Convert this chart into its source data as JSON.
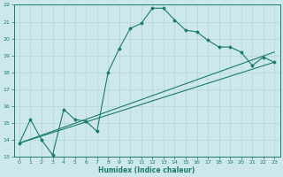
{
  "xlabel": "Humidex (Indice chaleur)",
  "ylabel": "",
  "xlim": [
    -0.5,
    23.5
  ],
  "ylim": [
    13,
    22
  ],
  "xticks": [
    0,
    1,
    2,
    3,
    4,
    5,
    6,
    7,
    8,
    9,
    10,
    11,
    12,
    13,
    14,
    15,
    16,
    17,
    18,
    19,
    20,
    21,
    22,
    23
  ],
  "yticks": [
    13,
    14,
    15,
    16,
    17,
    18,
    19,
    20,
    21,
    22
  ],
  "background_color": "#cde8ec",
  "line_color": "#1a7a6e",
  "grid_color": "#b8d8dc",
  "line1_x": [
    0,
    1,
    2,
    3,
    4,
    5,
    6,
    7,
    8,
    9,
    10,
    11,
    12,
    13,
    14,
    15,
    16,
    17,
    18,
    19,
    20,
    21,
    22,
    23
  ],
  "line1_y": [
    13.8,
    15.2,
    14.0,
    13.1,
    15.8,
    15.2,
    15.1,
    14.5,
    18.0,
    19.4,
    20.6,
    20.9,
    21.8,
    21.8,
    21.1,
    20.5,
    20.4,
    19.9,
    19.5,
    19.5,
    19.2,
    18.4,
    18.9,
    18.6
  ],
  "line2_x": [
    0,
    23
  ],
  "line2_y": [
    13.8,
    18.6
  ],
  "line3_x": [
    0,
    23
  ],
  "line3_y": [
    13.8,
    19.2
  ]
}
